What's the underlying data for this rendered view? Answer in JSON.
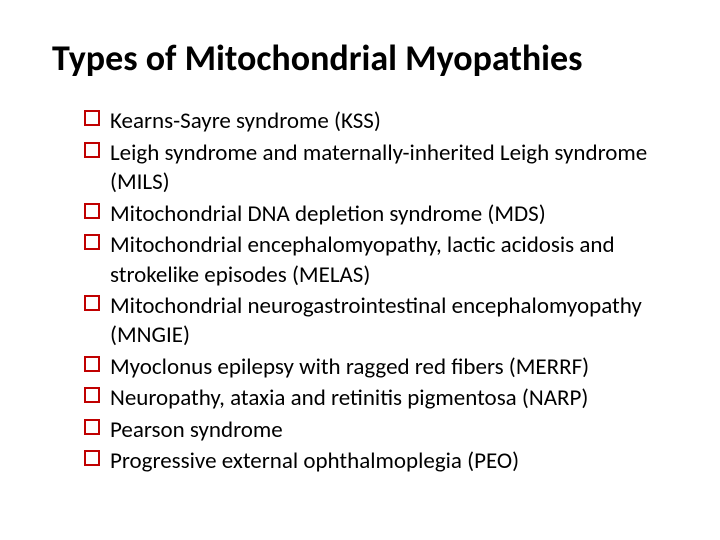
{
  "slide": {
    "title": "Types of Mitochondrial Myopathies",
    "title_color": "#000000",
    "title_fontsize": 36,
    "title_fontweight": 700,
    "background_color": "#ffffff",
    "bullet": {
      "type": "hollow-square",
      "border_color": "#c00000",
      "border_width": 2.2,
      "size": 16
    },
    "body_fontsize": 23,
    "body_color": "#000000",
    "items": [
      {
        "text": "Kearns-Sayre syndrome (KSS)"
      },
      {
        "text": "Leigh syndrome and maternally-inherited Leigh syndrome (MILS)"
      },
      {
        "text": "Mitochondrial DNA depletion syndrome (MDS)"
      },
      {
        "text": "Mitochondrial encephalomyopathy, lactic acidosis and strokelike episodes (MELAS)"
      },
      {
        "text": "Mitochondrial neurogastrointestinal encephalomyopathy (MNGIE)"
      },
      {
        "text": "Myoclonus epilepsy with ragged red fibers (MERRF)"
      },
      {
        "text": "Neuropathy, ataxia and retinitis pigmentosa (NARP)"
      },
      {
        "text": "Pearson syndrome"
      },
      {
        "text": "Progressive external ophthalmoplegia (PEO)"
      }
    ]
  }
}
